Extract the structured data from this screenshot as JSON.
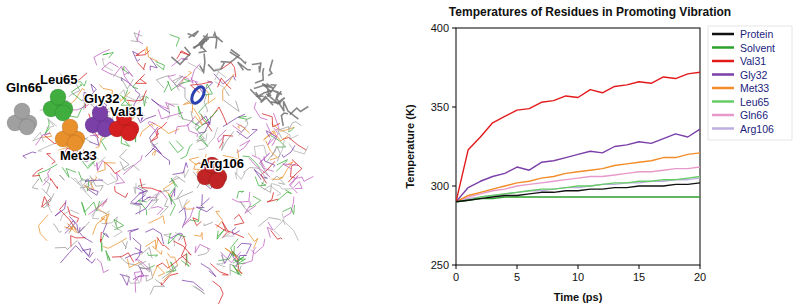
{
  "chart_data": {
    "type": "line",
    "title": "Temperatures of Residues in Promoting Vibration",
    "x_label": "Time (ps)",
    "y_label": "Temperature (K)",
    "x": [
      0,
      1,
      2,
      3,
      4,
      5,
      6,
      7,
      8,
      9,
      10,
      11,
      12,
      13,
      14,
      15,
      16,
      17,
      18,
      19,
      20
    ],
    "series": [
      {
        "name": "Protein",
        "color": "#111111",
        "values": [
          290,
          291,
          292,
          293,
          294,
          294,
          295,
          296,
          296,
          297,
          297,
          298,
          298,
          299,
          299,
          300,
          300,
          300,
          301,
          301,
          302
        ]
      },
      {
        "name": "Solvent",
        "color": "#2ca02c",
        "values": [
          290,
          291,
          292,
          292,
          293,
          293,
          293,
          293,
          293,
          293,
          293,
          293,
          293,
          293,
          293,
          293,
          293,
          293,
          293,
          293,
          293
        ]
      },
      {
        "name": "Val31",
        "color": "#e31a1c",
        "values": [
          290,
          323,
          331,
          340,
          344,
          348,
          349,
          353,
          354,
          357,
          356,
          361,
          359,
          363,
          364,
          366,
          365,
          369,
          368,
          371,
          372
        ]
      },
      {
        "name": "Gly32",
        "color": "#7b3fa8",
        "values": [
          290,
          299,
          303,
          306,
          308,
          312,
          310,
          315,
          316,
          318,
          320,
          322,
          321,
          325,
          326,
          328,
          327,
          330,
          333,
          331,
          336
        ]
      },
      {
        "name": "Met33",
        "color": "#f28c28",
        "values": [
          290,
          294,
          296,
          298,
          300,
          302,
          303,
          305,
          306,
          308,
          309,
          310,
          311,
          313,
          314,
          315,
          316,
          318,
          318,
          320,
          321
        ]
      },
      {
        "name": "Leu65",
        "color": "#66cc66",
        "values": [
          290,
          291,
          293,
          294,
          295,
          296,
          297,
          298,
          298,
          299,
          300,
          300,
          301,
          302,
          302,
          303,
          303,
          304,
          304,
          305,
          306
        ]
      },
      {
        "name": "Gln66",
        "color": "#e79ac9",
        "values": [
          290,
          293,
          295,
          297,
          298,
          300,
          301,
          302,
          303,
          304,
          305,
          306,
          306,
          307,
          308,
          309,
          309,
          310,
          311,
          311,
          312
        ]
      },
      {
        "name": "Arg106",
        "color": "#bcaee0",
        "values": [
          290,
          292,
          293,
          294,
          295,
          296,
          297,
          297,
          298,
          299,
          299,
          300,
          301,
          301,
          302,
          302,
          303,
          303,
          304,
          304,
          305
        ]
      }
    ],
    "xlim": [
      0,
      20
    ],
    "xticks": [
      0,
      5,
      10,
      15,
      20
    ],
    "ylim": [
      250,
      400
    ],
    "yticks": [
      250,
      300,
      350,
      400
    ],
    "legend": "right",
    "grid": false
  },
  "structure": {
    "labels": [
      {
        "text": "Gln66",
        "color": "#a0a0a0"
      },
      {
        "text": "Leu65",
        "color": "#3fae3f"
      },
      {
        "text": "Gly32",
        "color": "#7b3fa8"
      },
      {
        "text": "Val31",
        "color": "#d42020"
      },
      {
        "text": "Met33",
        "color": "#e8902c"
      },
      {
        "text": "Arg106",
        "color": "#c02424"
      }
    ]
  }
}
